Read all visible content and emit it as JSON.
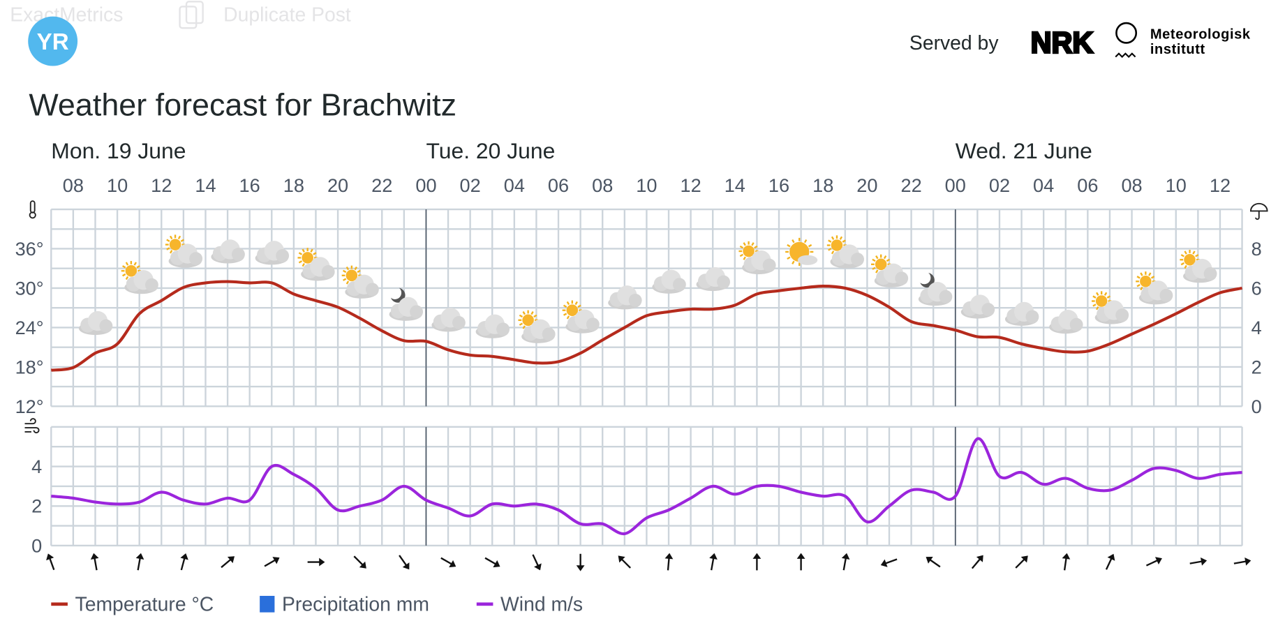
{
  "admin_bar": {
    "items": [
      "ExactMetrics",
      "Duplicate Post"
    ]
  },
  "header": {
    "logo": "YR",
    "served_by": "Served by",
    "partner_logo": "NRK",
    "met_line1": "Meteorologisk",
    "met_line2": "institutt"
  },
  "title": "Weather forecast for Brachwitz",
  "colors": {
    "temperature": "#b52a1c",
    "precipitation": "#2a6fdb",
    "wind": "#9b25dc",
    "logo": "#52b8ee"
  },
  "chart_data": {
    "type": "line",
    "days": [
      {
        "label": "Mon. 19 June"
      },
      {
        "label": "Tue. 20 June"
      },
      {
        "label": "Wed. 21 June"
      }
    ],
    "hour_ticks": [
      "08",
      "10",
      "12",
      "14",
      "16",
      "18",
      "20",
      "22",
      "00",
      "02",
      "04",
      "06",
      "08",
      "10",
      "12",
      "14",
      "16",
      "18",
      "20",
      "22",
      "00",
      "02",
      "04",
      "06",
      "08",
      "10",
      "12"
    ],
    "hours": [
      "07",
      "08",
      "09",
      "10",
      "11",
      "12",
      "13",
      "14",
      "15",
      "16",
      "17",
      "18",
      "19",
      "20",
      "21",
      "22",
      "23",
      "00",
      "01",
      "02",
      "03",
      "04",
      "05",
      "06",
      "07",
      "08",
      "09",
      "10",
      "11",
      "12",
      "13",
      "14",
      "15",
      "16",
      "17",
      "18",
      "19",
      "20",
      "21",
      "22",
      "23",
      "00",
      "01",
      "02",
      "03",
      "04",
      "05",
      "06",
      "07",
      "08",
      "09",
      "10",
      "11",
      "12",
      "13"
    ],
    "temperature": {
      "name": "Temperature °C",
      "axis_ticks": [
        "12°",
        "18°",
        "24°",
        "30°",
        "36°"
      ],
      "ylim": [
        12,
        42
      ],
      "values": [
        17.5,
        17.9,
        20.1,
        21.5,
        26.1,
        28.1,
        30.1,
        30.8,
        31.0,
        30.8,
        30.8,
        29.1,
        28.1,
        27.1,
        25.4,
        23.5,
        22.0,
        21.9,
        20.6,
        19.8,
        19.6,
        19.1,
        18.6,
        18.8,
        20.1,
        22.1,
        24.0,
        25.8,
        26.4,
        26.8,
        26.8,
        27.4,
        29.1,
        29.6,
        30.0,
        30.3,
        30.0,
        28.9,
        27.1,
        24.9,
        24.3,
        23.6,
        22.6,
        22.5,
        21.5,
        20.8,
        20.3,
        20.4,
        21.5,
        23.0,
        24.5,
        26.1,
        27.8,
        29.3,
        30.0
      ]
    },
    "precipitation": {
      "name": "Precipitation mm",
      "axis_ticks": [
        "0",
        "2",
        "4",
        "6",
        "8"
      ],
      "ylim": [
        0,
        10
      ],
      "values": []
    },
    "wind": {
      "name": "Wind m/s",
      "axis_ticks": [
        "0",
        "2",
        "4"
      ],
      "ylim": [
        0,
        6
      ],
      "values": [
        2.5,
        2.4,
        2.2,
        2.1,
        2.2,
        2.7,
        2.3,
        2.1,
        2.4,
        2.3,
        4.0,
        3.6,
        2.9,
        1.8,
        2.0,
        2.3,
        3.0,
        2.3,
        1.9,
        1.5,
        2.1,
        2.0,
        2.1,
        1.8,
        1.1,
        1.1,
        0.6,
        1.4,
        1.8,
        2.4,
        3.0,
        2.6,
        3.0,
        3.0,
        2.7,
        2.5,
        2.5,
        1.2,
        2.0,
        2.8,
        2.7,
        2.5,
        5.4,
        3.5,
        3.7,
        3.1,
        3.4,
        2.9,
        2.8,
        3.3,
        3.9,
        3.8,
        3.4,
        3.6,
        3.7
      ]
    },
    "weather_symbols": [
      "cloudy",
      "partly-cloudy-day",
      "partly-cloudy-day",
      "cloudy",
      "cloudy",
      "partly-cloudy-day",
      "partly-cloudy-day",
      "partly-cloudy-night",
      "cloudy",
      "cloudy",
      "partly-cloudy-day",
      "partly-cloudy-day",
      "cloudy",
      "cloudy",
      "cloudy",
      "partly-cloudy-day",
      "fair-day",
      "partly-cloudy-day",
      "partly-cloudy-day",
      "partly-cloudy-night",
      "cloudy",
      "cloudy",
      "cloudy",
      "partly-cloudy-day",
      "partly-cloudy-day",
      "partly-cloudy-day"
    ],
    "wind_direction_arrows_deg": [
      -20,
      -10,
      10,
      15,
      50,
      60,
      90,
      135,
      145,
      120,
      120,
      155,
      180,
      -45,
      5,
      10,
      0,
      0,
      10,
      250,
      -55,
      40,
      45,
      8,
      25,
      65,
      80,
      80
    ],
    "icons": {
      "temperature_axis": "thermometer-icon",
      "precipitation_axis": "umbrella-icon",
      "wind_axis": "wind-icon"
    },
    "legend_position": "bottom-left",
    "grid": true
  }
}
